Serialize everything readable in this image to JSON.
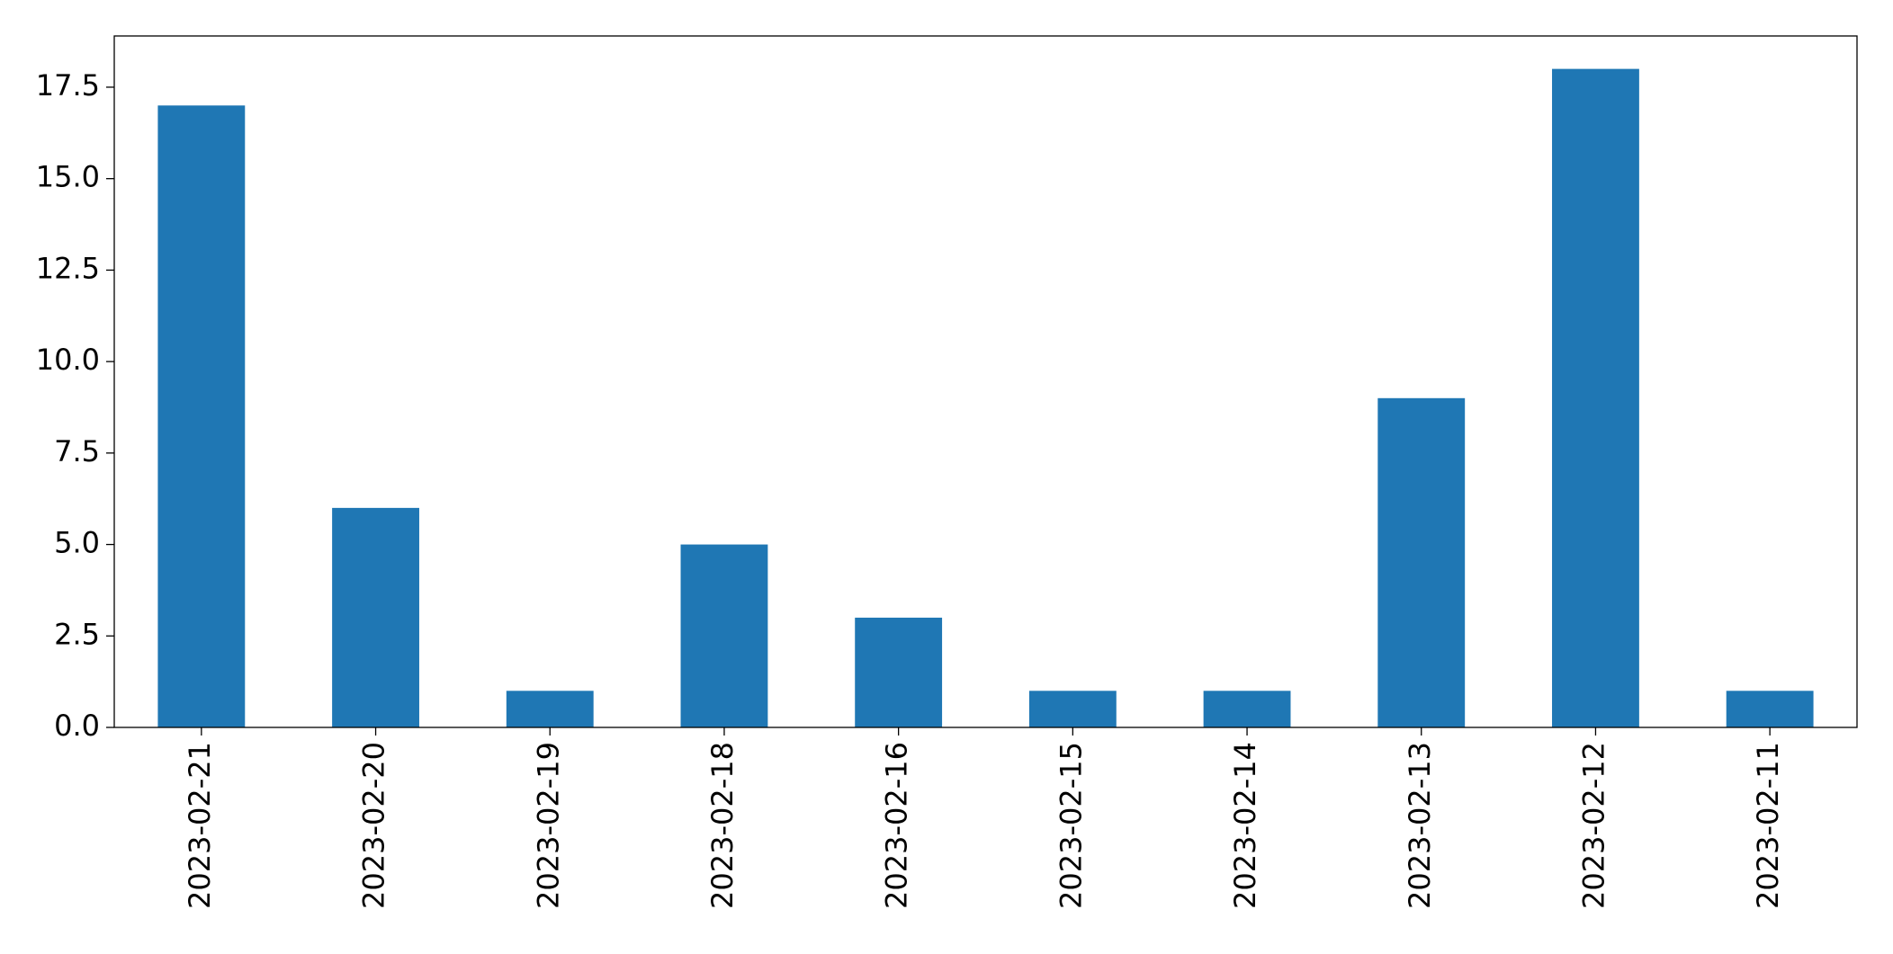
{
  "chart_data": {
    "type": "bar",
    "categories": [
      "2023-02-21",
      "2023-02-20",
      "2023-02-19",
      "2023-02-18",
      "2023-02-16",
      "2023-02-15",
      "2023-02-14",
      "2023-02-13",
      "2023-02-12",
      "2023-02-11"
    ],
    "values": [
      17,
      6,
      1,
      5,
      3,
      1,
      1,
      9,
      18,
      1
    ],
    "color": "#1f77b4",
    "ylim": [
      0,
      18.9
    ],
    "yticks": [
      {
        "value": 0,
        "label": "0.0"
      },
      2.5,
      {
        "value": 5,
        "label": "5.0"
      },
      7.5,
      {
        "value": 10,
        "label": "10.0"
      },
      12.5,
      {
        "value": 15,
        "label": "15.0"
      },
      17.5
    ],
    "grid": false
  }
}
